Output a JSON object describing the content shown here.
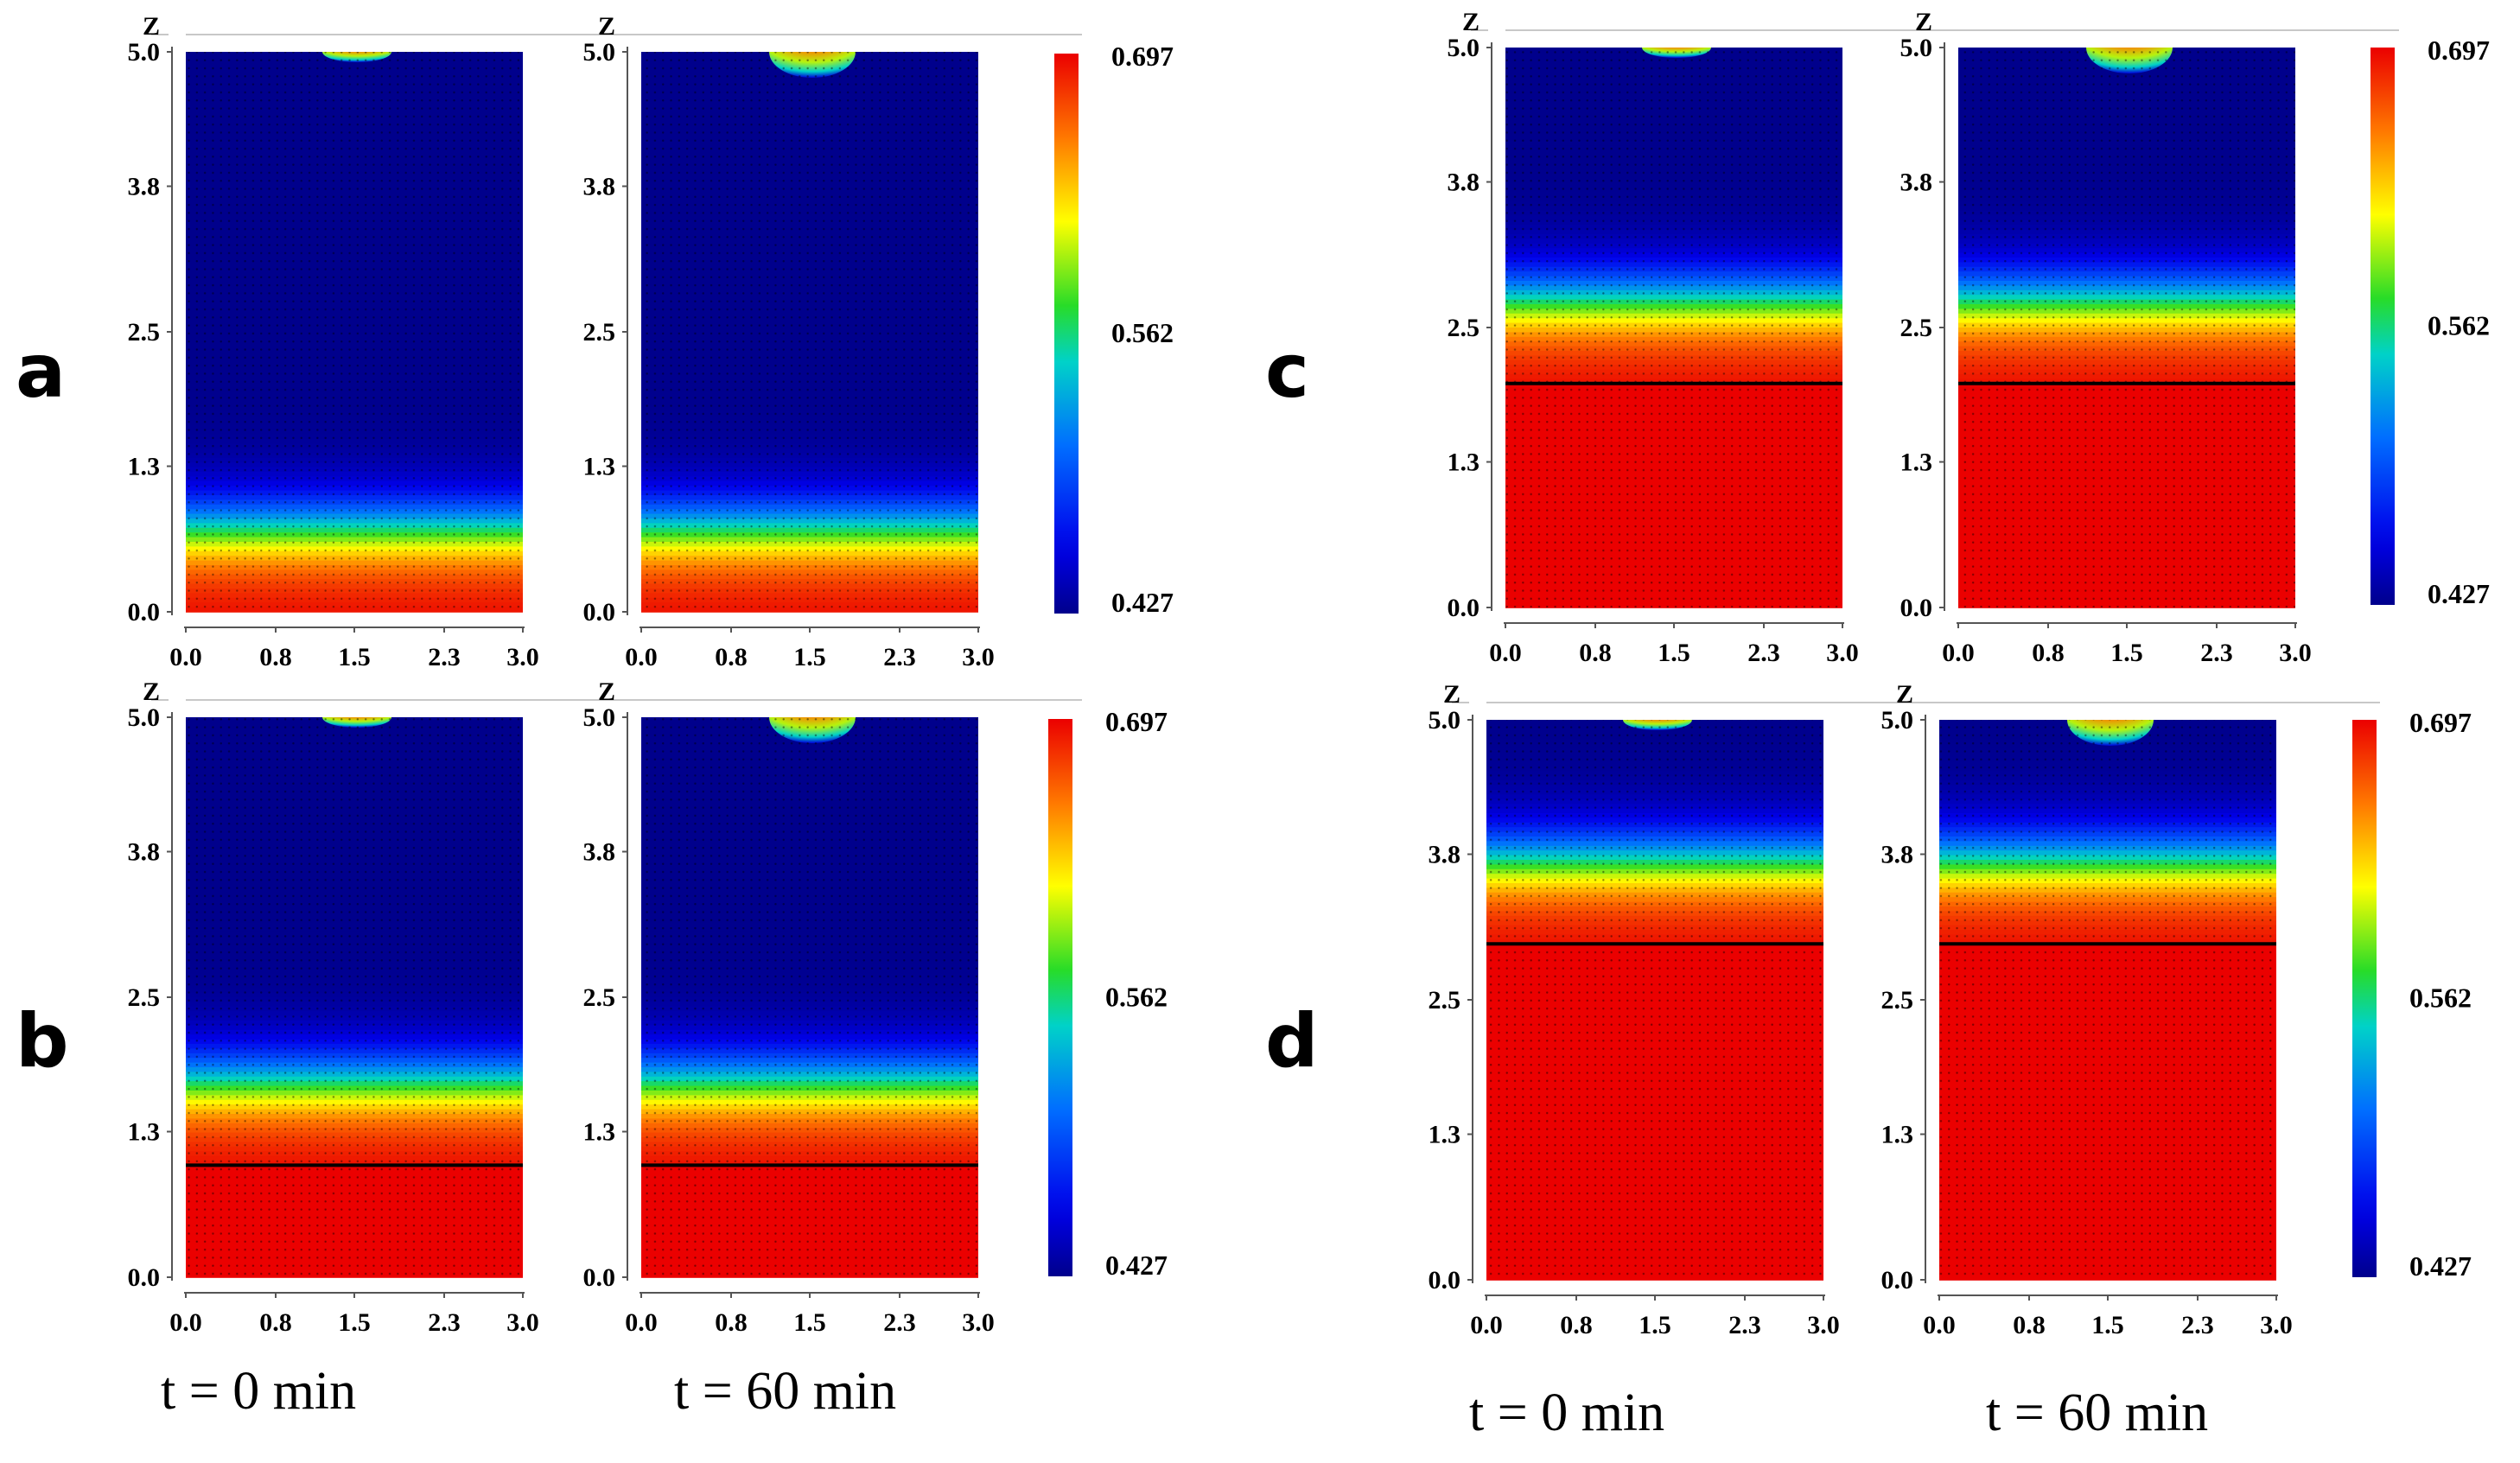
{
  "figure": {
    "time_labels": [
      "t = 0 min",
      "t = 60 min"
    ]
  },
  "chart_data": [
    {
      "type": "heatmap",
      "panel": "a",
      "title": "",
      "subplots": [
        {
          "time": "t = 0 min",
          "bottom_layer_top_z": 0.0,
          "gradient_center_z": 0.75,
          "top_hotspot": "small"
        },
        {
          "time": "t = 60 min",
          "bottom_layer_top_z": 0.0,
          "gradient_center_z": 0.75,
          "top_hotspot": "large"
        }
      ],
      "xlabel": "",
      "ylabel": "Z",
      "xlim": [
        0.0,
        3.0
      ],
      "ylim": [
        0.0,
        5.0
      ],
      "xticks": [
        "0.0",
        "0.8",
        "1.5",
        "2.3",
        "3.0"
      ],
      "yticks": [
        "0.0",
        "1.3",
        "2.5",
        "3.8",
        "5.0"
      ],
      "colorbar": {
        "min": 0.427,
        "mid": 0.562,
        "max": 0.697,
        "labels": [
          "0.697",
          "0.562",
          "0.427"
        ]
      }
    },
    {
      "type": "heatmap",
      "panel": "b",
      "title": "",
      "subplots": [
        {
          "time": "t = 0 min",
          "bottom_layer_top_z": 1.0,
          "gradient_center_z": 1.75,
          "top_hotspot": "small"
        },
        {
          "time": "t = 60 min",
          "bottom_layer_top_z": 1.0,
          "gradient_center_z": 1.75,
          "top_hotspot": "large"
        }
      ],
      "xlabel": "",
      "ylabel": "Z",
      "xlim": [
        0.0,
        3.0
      ],
      "ylim": [
        0.0,
        5.0
      ],
      "xticks": [
        "0.0",
        "0.8",
        "1.5",
        "2.3",
        "3.0"
      ],
      "yticks": [
        "0.0",
        "1.3",
        "2.5",
        "3.8",
        "5.0"
      ],
      "colorbar": {
        "min": 0.427,
        "mid": 0.562,
        "max": 0.697,
        "labels": [
          "0.697",
          "0.562",
          "0.427"
        ]
      }
    },
    {
      "type": "heatmap",
      "panel": "c",
      "title": "",
      "subplots": [
        {
          "time": "t = 0 min",
          "bottom_layer_top_z": 2.0,
          "gradient_center_z": 2.75,
          "top_hotspot": "small"
        },
        {
          "time": "t = 60 min",
          "bottom_layer_top_z": 2.0,
          "gradient_center_z": 2.75,
          "top_hotspot": "large"
        }
      ],
      "xlabel": "",
      "ylabel": "Z",
      "xlim": [
        0.0,
        3.0
      ],
      "ylim": [
        0.0,
        5.0
      ],
      "xticks": [
        "0.0",
        "0.8",
        "1.5",
        "2.3",
        "3.0"
      ],
      "yticks": [
        "0.0",
        "1.3",
        "2.5",
        "3.8",
        "5.0"
      ],
      "colorbar": {
        "min": 0.427,
        "mid": 0.562,
        "max": 0.697,
        "labels": [
          "0.697",
          "0.562",
          "0.427"
        ]
      }
    },
    {
      "type": "heatmap",
      "panel": "d",
      "title": "",
      "subplots": [
        {
          "time": "t = 0 min",
          "bottom_layer_top_z": 3.0,
          "gradient_center_z": 3.75,
          "top_hotspot": "small"
        },
        {
          "time": "t = 60 min",
          "bottom_layer_top_z": 3.0,
          "gradient_center_z": 3.75,
          "top_hotspot": "large"
        }
      ],
      "xlabel": "",
      "ylabel": "Z",
      "xlim": [
        0.0,
        3.0
      ],
      "ylim": [
        0.0,
        5.0
      ],
      "xticks": [
        "0.0",
        "0.8",
        "1.5",
        "2.3",
        "3.0"
      ],
      "yticks": [
        "0.0",
        "1.3",
        "2.5",
        "3.8",
        "5.0"
      ],
      "colorbar": {
        "min": 0.427,
        "mid": 0.562,
        "max": 0.697,
        "labels": [
          "0.697",
          "0.562",
          "0.427"
        ]
      }
    }
  ]
}
